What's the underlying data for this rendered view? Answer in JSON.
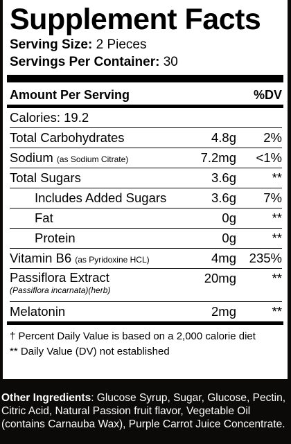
{
  "title": "Supplement Facts",
  "serving_size_label": "Serving Size:",
  "serving_size_value": "2 Pieces",
  "servings_label": "Servings Per Container:",
  "servings_value": "30",
  "header": {
    "amount": "Amount Per Serving",
    "dv": "%DV"
  },
  "calories": "Calories: 19.2",
  "rows": [
    {
      "name": "Total Carbohydrates",
      "note": "",
      "amount": "4.8g",
      "dv": "2%"
    },
    {
      "name": "Sodium",
      "note": "(as Sodium Citrate)",
      "amount": "7.2mg",
      "dv": "<1%"
    },
    {
      "name": "Total Sugars",
      "note": "",
      "amount": "3.6g",
      "dv": "**"
    },
    {
      "name": "Includes Added Sugars",
      "note": "",
      "amount": "3.6g",
      "dv": "7%"
    },
    {
      "name": "Fat",
      "note": "",
      "amount": "0g",
      "dv": "**"
    },
    {
      "name": "Protein",
      "note": "",
      "amount": "0g",
      "dv": "**"
    },
    {
      "name": "Vitamin B6",
      "note": "(as Pyridoxine HCL)",
      "amount": "4mg",
      "dv": "235%"
    },
    {
      "name": "Passiflora Extract",
      "note": "(Passiflora incarnata)(herb)",
      "amount": "20mg",
      "dv": "**"
    },
    {
      "name": "Melatonin",
      "note": "",
      "amount": "2mg",
      "dv": "**"
    }
  ],
  "footnote_1": "† Percent Daily Value is based on a 2,000 calorie diet",
  "footnote_2": "** Daily Value (DV) not established",
  "ingredients_label": "Other Ingredients",
  "ingredients_text": ": Glucose Syrup, Sugar, Glucose, Pectin, Citric Acid, Natural Passion fruit flavor, Vegetable Oil (contains Carnauba Wax), Purple Carrot Juice Concentrate."
}
